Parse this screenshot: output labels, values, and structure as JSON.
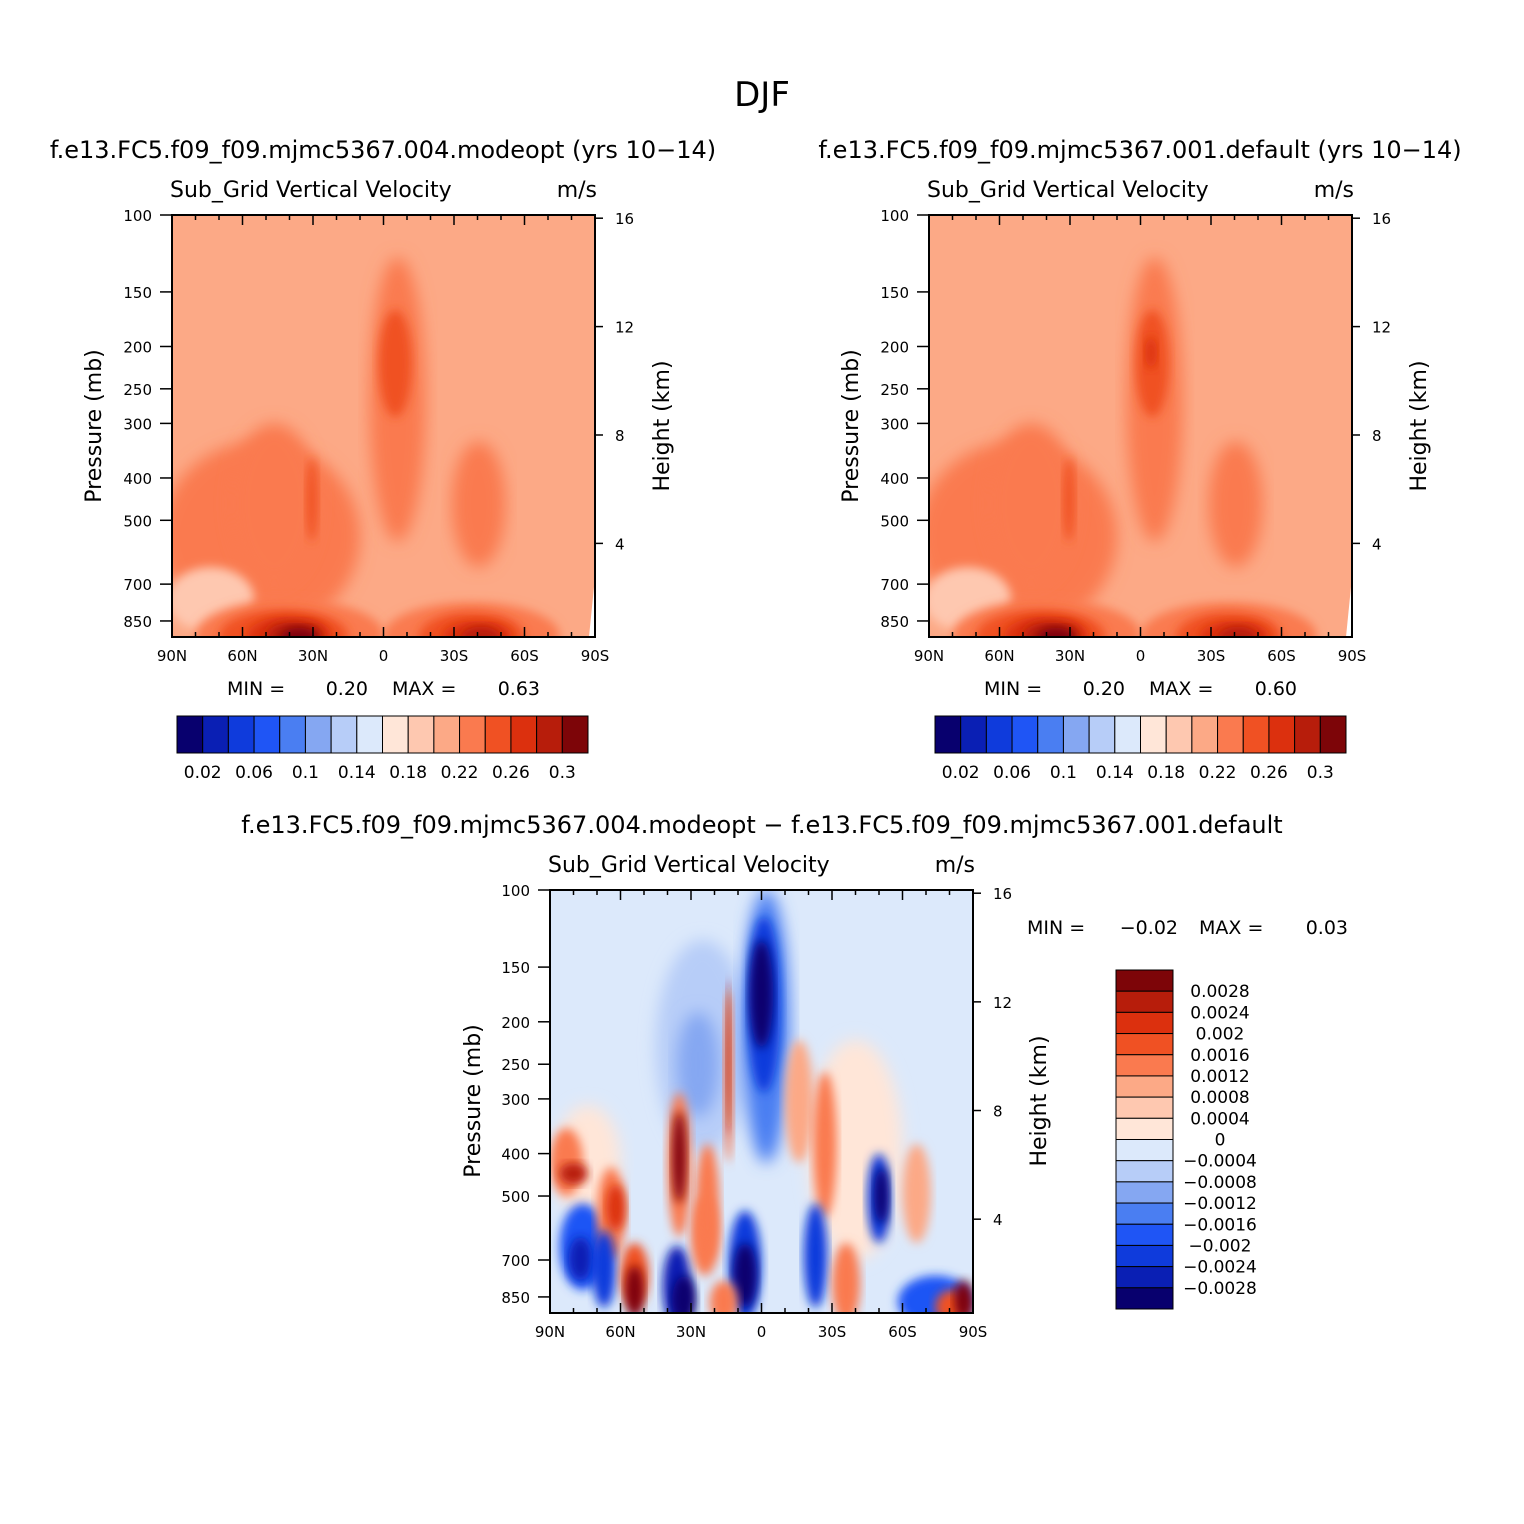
{
  "figure_title": "DJF",
  "chart_data": [
    {
      "type": "heatmap",
      "title": "f.e13.FC5.f09_f09.mjmc5367.004.modeopt (yrs 10−14)",
      "subtitle_left": "Sub_Grid Vertical Velocity",
      "subtitle_right": "m/s",
      "xlabel": "",
      "ylabel": "Pressure (mb)",
      "y2label": "Height (km)",
      "x_ticks": [
        "90N",
        "60N",
        "30N",
        "0",
        "30S",
        "60S",
        "90S"
      ],
      "x_range": [
        90,
        -90
      ],
      "y_ticks": [
        "100",
        "150",
        "200",
        "250",
        "300",
        "400",
        "500",
        "700",
        "850"
      ],
      "y_range_mb": [
        100,
        925
      ],
      "y2_ticks": [
        "16",
        "12",
        "8",
        "4"
      ],
      "min_label": "MIN =",
      "min_value": "0.20",
      "max_label": "MAX =",
      "max_value": "0.63",
      "colorbar_labels": [
        "0.02",
        "0.06",
        "0.1",
        "0.14",
        "0.18",
        "0.22",
        "0.26",
        "0.3"
      ],
      "levels": [
        0.02,
        0.04,
        0.06,
        0.08,
        0.1,
        0.12,
        0.14,
        0.16,
        0.18,
        0.2,
        0.22,
        0.24,
        0.26,
        0.28,
        0.3
      ],
      "variant": "a"
    },
    {
      "type": "heatmap",
      "title": "f.e13.FC5.f09_f09.mjmc5367.001.default (yrs 10−14)",
      "subtitle_left": "Sub_Grid Vertical Velocity",
      "subtitle_right": "m/s",
      "xlabel": "",
      "ylabel": "Pressure (mb)",
      "y2label": "Height (km)",
      "x_ticks": [
        "90N",
        "60N",
        "30N",
        "0",
        "30S",
        "60S",
        "90S"
      ],
      "x_range": [
        90,
        -90
      ],
      "y_ticks": [
        "100",
        "150",
        "200",
        "250",
        "300",
        "400",
        "500",
        "700",
        "850"
      ],
      "y_range_mb": [
        100,
        925
      ],
      "y2_ticks": [
        "16",
        "12",
        "8",
        "4"
      ],
      "min_label": "MIN =",
      "min_value": "0.20",
      "max_label": "MAX =",
      "max_value": "0.60",
      "colorbar_labels": [
        "0.02",
        "0.06",
        "0.1",
        "0.14",
        "0.18",
        "0.22",
        "0.26",
        "0.3"
      ],
      "levels": [
        0.02,
        0.04,
        0.06,
        0.08,
        0.1,
        0.12,
        0.14,
        0.16,
        0.18,
        0.2,
        0.22,
        0.24,
        0.26,
        0.28,
        0.3
      ],
      "variant": "b"
    },
    {
      "type": "heatmap",
      "title": "f.e13.FC5.f09_f09.mjmc5367.004.modeopt − f.e13.FC5.f09_f09.mjmc5367.001.default",
      "subtitle_left": "Sub_Grid Vertical Velocity",
      "subtitle_right": "m/s",
      "xlabel": "",
      "ylabel": "Pressure (mb)",
      "y2label": "Height (km)",
      "x_ticks": [
        "90N",
        "60N",
        "30N",
        "0",
        "30S",
        "60S",
        "90S"
      ],
      "x_range": [
        90,
        -90
      ],
      "y_ticks": [
        "100",
        "150",
        "200",
        "250",
        "300",
        "400",
        "500",
        "700",
        "850"
      ],
      "y_range_mb": [
        100,
        925
      ],
      "y2_ticks": [
        "16",
        "12",
        "8",
        "4"
      ],
      "min_label": "MIN =",
      "min_value": "−0.02",
      "max_label": "MAX =",
      "max_value": "0.03",
      "colorbar_labels": [
        "0.0028",
        "0.0024",
        "0.002",
        "0.0016",
        "0.0012",
        "0.0008",
        "0.0004",
        "0",
        "−0.0004",
        "−0.0008",
        "−0.0012",
        "−0.0016",
        "−0.002",
        "−0.0024",
        "−0.0028"
      ],
      "variant": "diff"
    }
  ],
  "colors": {
    "seq": [
      "#08006e",
      "#0a1fb4",
      "#0f3bdc",
      "#1f55f5",
      "#4a7ef2",
      "#85a7f2",
      "#b7cdf8",
      "#dce9fb",
      "#ffe6d8",
      "#fec8b0",
      "#fca986",
      "#fa7a4f",
      "#f05123",
      "#dc300e",
      "#b71d0b",
      "#7d0508"
    ],
    "diff": [
      "#08006e",
      "#0a1fb4",
      "#0f3bdc",
      "#1f55f5",
      "#4a7ef2",
      "#85a7f2",
      "#b7cdf8",
      "#dce9fb",
      "#ffe6d8",
      "#fec8b0",
      "#fca986",
      "#fa7a4f",
      "#f05123",
      "#dc300e",
      "#b71d0b",
      "#7d0508"
    ]
  }
}
